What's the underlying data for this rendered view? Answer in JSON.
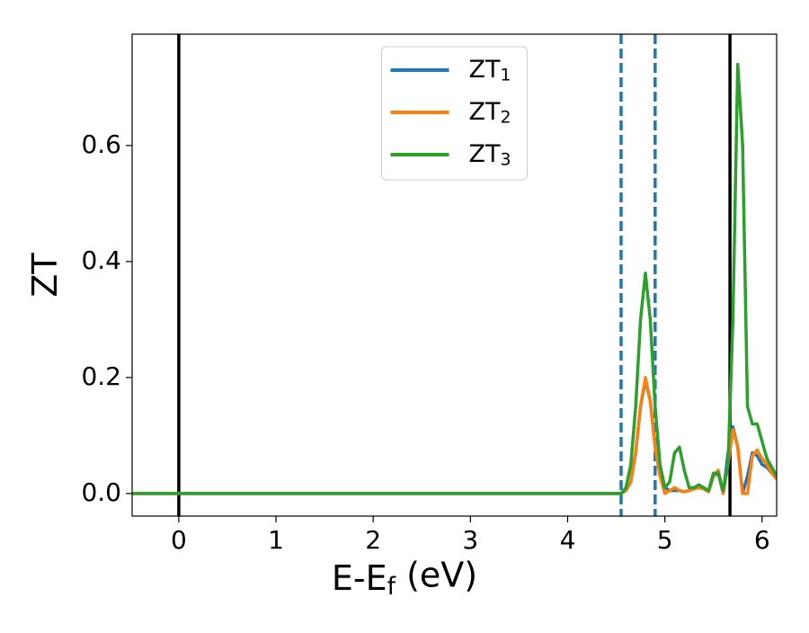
{
  "chart_data": {
    "type": "line",
    "xlabel": "E-E_f (eV)",
    "ylabel": "ZT",
    "x": [
      -0.5,
      0,
      1,
      2,
      3,
      4,
      4.5,
      4.55,
      4.6,
      4.65,
      4.7,
      4.75,
      4.8,
      4.85,
      4.9,
      4.95,
      5.0,
      5.05,
      5.1,
      5.15,
      5.2,
      5.25,
      5.3,
      5.35,
      5.4,
      5.45,
      5.5,
      5.55,
      5.6,
      5.65,
      5.7,
      5.75,
      5.8,
      5.85,
      5.9,
      5.95,
      6.0,
      6.05,
      6.1,
      6.15
    ],
    "series": [
      {
        "name": "ZT_1",
        "color": "#1f77b4",
        "values": [
          0,
          0,
          0,
          0,
          0,
          0,
          0,
          0,
          0.005,
          0.02,
          0.07,
          0.15,
          0.195,
          0.16,
          0.08,
          0.03,
          0.01,
          0.005,
          0.005,
          0.005,
          0.003,
          0.005,
          0.008,
          0.01,
          0.008,
          0.003,
          0.03,
          0.035,
          0.0,
          0.07,
          0.115,
          0.08,
          0.0,
          0.03,
          0.07,
          0.065,
          0.05,
          0.045,
          0.035,
          0.025
        ]
      },
      {
        "name": "ZT_2",
        "color": "#ff7f0e",
        "values": [
          0,
          0,
          0,
          0,
          0,
          0,
          0,
          0,
          0.005,
          0.02,
          0.07,
          0.15,
          0.2,
          0.16,
          0.08,
          0.03,
          0.0,
          0.005,
          0.01,
          0.005,
          0.003,
          0.005,
          0.008,
          0.01,
          0.008,
          0.003,
          0.03,
          0.04,
          0.0,
          0.05,
          0.11,
          0.08,
          0.0,
          0.0,
          0.065,
          0.075,
          0.06,
          0.05,
          0.035,
          0.025
        ]
      },
      {
        "name": "ZT_3",
        "color": "#2ca02c",
        "values": [
          0,
          0,
          0,
          0,
          0,
          0,
          0,
          0,
          0.01,
          0.05,
          0.15,
          0.3,
          0.38,
          0.3,
          0.15,
          0.05,
          0.01,
          0.02,
          0.07,
          0.08,
          0.04,
          0.01,
          0.01,
          0.015,
          0.01,
          0.005,
          0.035,
          0.035,
          0.005,
          0.05,
          0.3,
          0.74,
          0.6,
          0.15,
          0.12,
          0.12,
          0.09,
          0.06,
          0.045,
          0.03
        ]
      }
    ],
    "vlines": [
      {
        "x": 0,
        "color": "#000000",
        "style": "solid"
      },
      {
        "x": 4.55,
        "color": "#1f77b4",
        "style": "dashed"
      },
      {
        "x": 4.9,
        "color": "#1f77b4",
        "style": "dashed"
      },
      {
        "x": 5.67,
        "color": "#000000",
        "style": "solid"
      }
    ],
    "xlim": [
      -0.48,
      6.15
    ],
    "ylim": [
      -0.039,
      0.792
    ],
    "xticks": [
      0,
      1,
      2,
      3,
      4,
      5,
      6
    ],
    "yticks": [
      {
        "value": 0,
        "label": "0.0"
      },
      0.2,
      0.4,
      0.6
    ],
    "legend": "upper center"
  }
}
